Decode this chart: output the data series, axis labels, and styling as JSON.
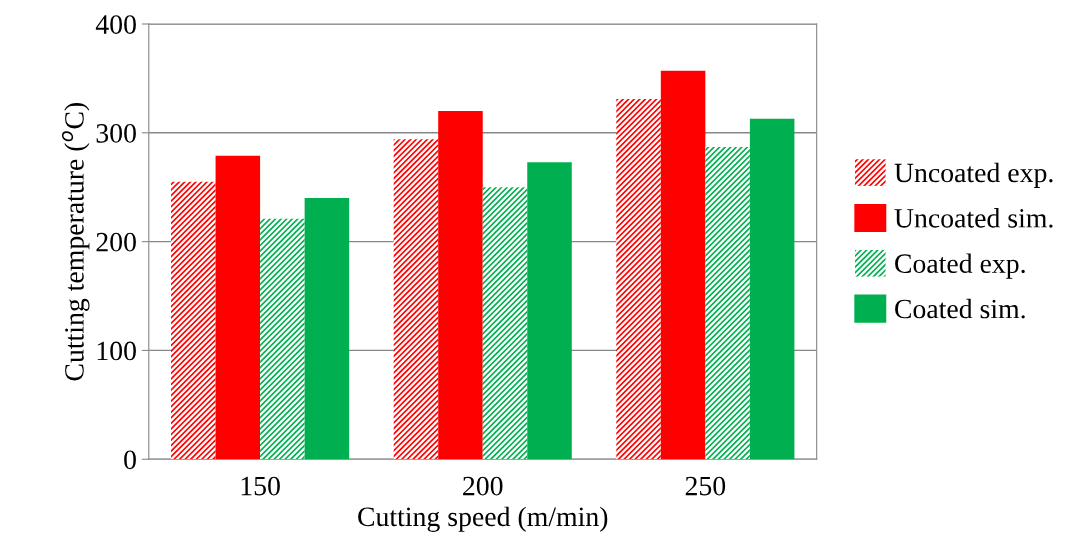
{
  "chart_data": {
    "type": "bar",
    "xlabel": "Cutting speed (m/min)",
    "ylabel": "Cutting temperature ($^{o}$C)",
    "categories": [
      "150",
      "200",
      "250"
    ],
    "series": [
      {
        "name": "Uncoated exp.",
        "color": "#ff0000",
        "values": [
          255,
          294,
          331
        ]
      },
      {
        "name": "Uncoated sim.",
        "color": "#ff0000",
        "values": [
          279,
          320,
          357
        ]
      },
      {
        "name": "Coated exp.",
        "color": "#00b050",
        "values": [
          221,
          250,
          287
        ]
      },
      {
        "name": "Coated sim.",
        "color": "#00b050",
        "values": [
          240,
          273,
          313
        ]
      }
    ],
    "ylim": [
      0,
      400
    ],
    "yticks": [
      0,
      100,
      200,
      300,
      400
    ],
    "grid": "y",
    "legend": "right"
  }
}
